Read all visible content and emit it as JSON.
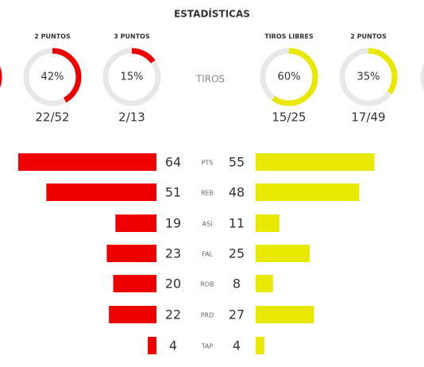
{
  "title": "ESTADÍSTICAS",
  "home_color": "#ee0000",
  "away_color": "#e8e800",
  "shots_label": "TIROS",
  "gauges": [
    {
      "team": "home",
      "label": "2 PUNTOS",
      "value": 42,
      "value_label": "42%",
      "made_attempted": "22/52"
    },
    {
      "team": "home",
      "label": "3 PUNTOS",
      "value": 15,
      "value_label": "15%",
      "made_attempted": "2/13"
    },
    {
      "team": "away",
      "label": "TIROS LIBRES",
      "value": 60,
      "value_label": "60%",
      "made_attempted": "15/25"
    },
    {
      "team": "away",
      "label": "2 PUNTOS",
      "value": 35,
      "value_label": "35%",
      "made_attempted": "17/49"
    }
  ],
  "rows": [
    {
      "stat": "PTS",
      "home": 64,
      "away": 55
    },
    {
      "stat": "REB",
      "home": 51,
      "away": 48
    },
    {
      "stat": "ASI",
      "home": 19,
      "away": 11
    },
    {
      "stat": "FAL",
      "home": 23,
      "away": 25
    },
    {
      "stat": "ROB",
      "home": 20,
      "away": 8
    },
    {
      "stat": "PRD",
      "home": 22,
      "away": 27
    },
    {
      "stat": "TAP",
      "home": 4,
      "away": 4
    }
  ]
}
